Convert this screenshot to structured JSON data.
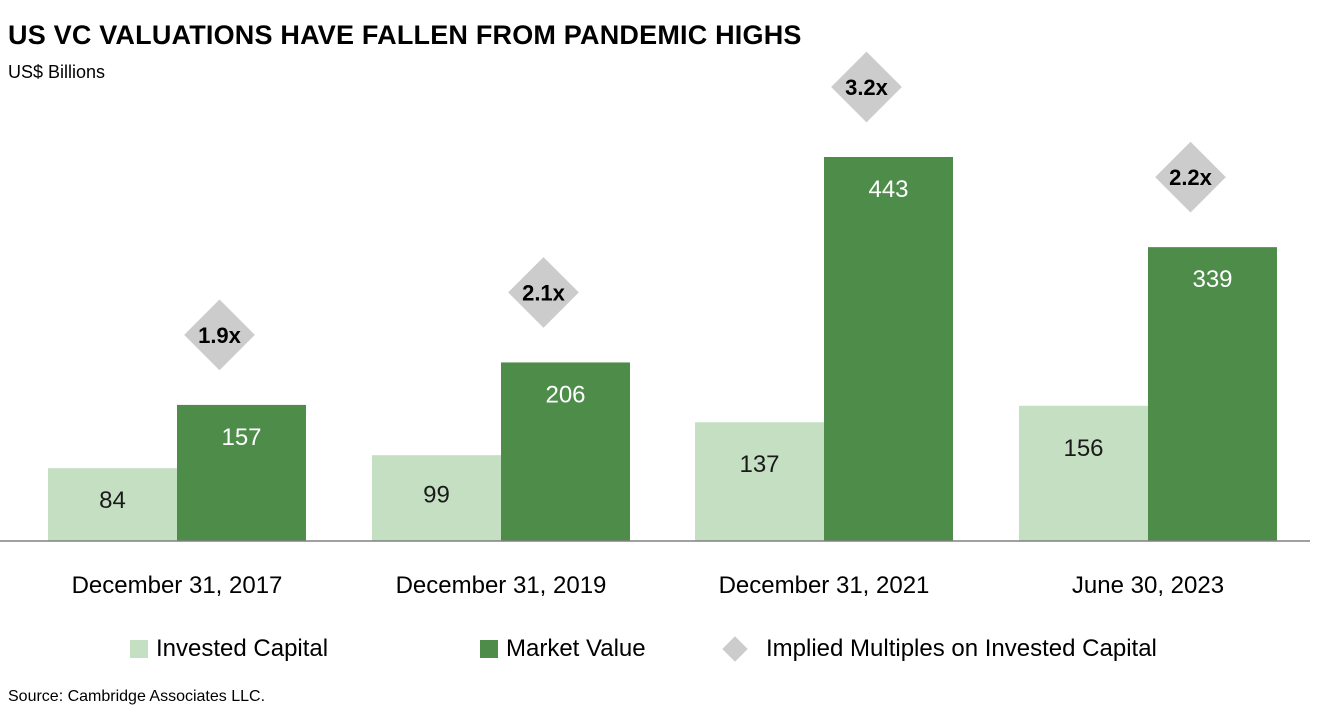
{
  "chart_data": {
    "type": "bar",
    "title": "US VC VALUATIONS HAVE FALLEN FROM PANDEMIC HIGHS",
    "subtitle": "US$ Billions",
    "categories": [
      "December 31, 2017",
      "December 31, 2019",
      "December 31, 2021",
      "June 30, 2023"
    ],
    "series": [
      {
        "name": "Invested Capital",
        "values": [
          84,
          99,
          137,
          156
        ],
        "color": "#c5dfc3"
      },
      {
        "name": "Market Value",
        "values": [
          157,
          206,
          443,
          339
        ],
        "color": "#4e8c4a"
      }
    ],
    "multiples": {
      "name": "Implied Multiples on Invested Capital",
      "labels": [
        "1.9x",
        "2.1x",
        "3.2x",
        "2.2x"
      ],
      "color": "#cccccc"
    },
    "ylim": [
      0,
      443
    ],
    "grid": false,
    "legend_position": "bottom"
  },
  "source": "Source: Cambridge Associates LLC."
}
